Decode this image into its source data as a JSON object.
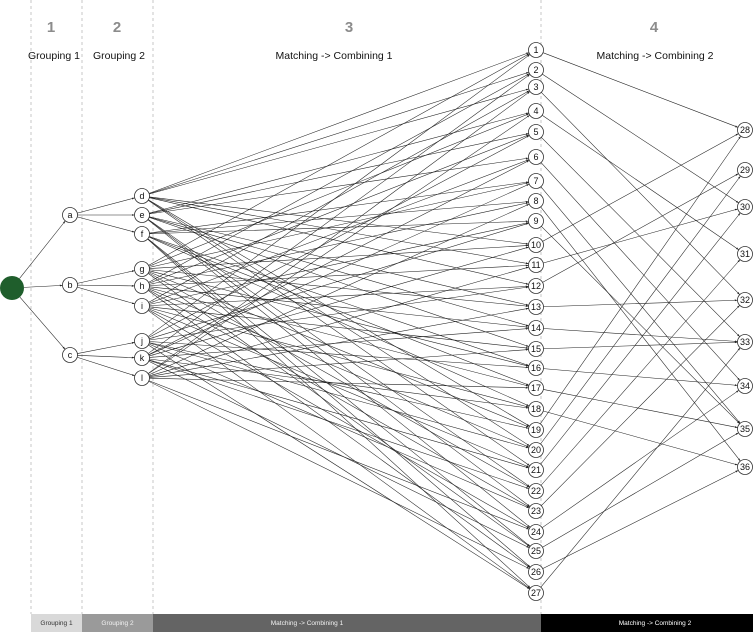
{
  "stages": [
    {
      "number": "1",
      "title": "Grouping 1"
    },
    {
      "number": "2",
      "title": "Grouping 2"
    },
    {
      "number": "3",
      "title": "Matching -> Combining 1"
    },
    {
      "number": "4",
      "title": "Matching -> Combining 2"
    }
  ],
  "footer": [
    {
      "label": "Grouping 1",
      "color": "#d9d9d9",
      "text_color": "#333333"
    },
    {
      "label": "Grouping 2",
      "color": "#9a9a9a",
      "text_color": "#f2f2f2"
    },
    {
      "label": "Matching -> Combining 1",
      "color": "#646464",
      "text_color": "#f2f2f2"
    },
    {
      "label": "Matching -> Combining 2",
      "color": "#000000",
      "text_color": "#ffffff"
    }
  ],
  "colors": {
    "root_node": "#1f5e2c",
    "stage_number": "#8c8c8c",
    "edge": "#222222",
    "divider": "#b0b0b0"
  },
  "nodes": {
    "root": "",
    "group1": [
      "a",
      "b",
      "c"
    ],
    "group2": [
      "d",
      "e",
      "f",
      "g",
      "h",
      "i",
      "j",
      "k",
      "l"
    ],
    "combo1": [
      "1",
      "2",
      "3",
      "4",
      "5",
      "6",
      "7",
      "8",
      "9",
      "10",
      "11",
      "12",
      "13",
      "14",
      "15",
      "16",
      "17",
      "18",
      "19",
      "20",
      "21",
      "22",
      "23",
      "24",
      "25",
      "26",
      "27"
    ],
    "combo2": [
      "28",
      "29",
      "30",
      "31",
      "32",
      "33",
      "34",
      "35",
      "36"
    ]
  },
  "edges": {
    "root_to_group1": [
      [
        "root",
        "a"
      ],
      [
        "root",
        "b"
      ],
      [
        "root",
        "c"
      ]
    ],
    "group1_to_group2": [
      [
        "a",
        "d"
      ],
      [
        "a",
        "e"
      ],
      [
        "a",
        "f"
      ],
      [
        "b",
        "g"
      ],
      [
        "b",
        "h"
      ],
      [
        "b",
        "i"
      ],
      [
        "c",
        "j"
      ],
      [
        "c",
        "k"
      ],
      [
        "c",
        "l"
      ]
    ],
    "group2_to_combo1": [
      [
        "d",
        "1"
      ],
      [
        "d",
        "2"
      ],
      [
        "d",
        "3"
      ],
      [
        "d",
        "10"
      ],
      [
        "d",
        "11"
      ],
      [
        "d",
        "12"
      ],
      [
        "d",
        "19"
      ],
      [
        "d",
        "20"
      ],
      [
        "d",
        "21"
      ],
      [
        "e",
        "4"
      ],
      [
        "e",
        "5"
      ],
      [
        "e",
        "6"
      ],
      [
        "e",
        "13"
      ],
      [
        "e",
        "14"
      ],
      [
        "e",
        "15"
      ],
      [
        "e",
        "22"
      ],
      [
        "e",
        "23"
      ],
      [
        "e",
        "24"
      ],
      [
        "f",
        "7"
      ],
      [
        "f",
        "8"
      ],
      [
        "f",
        "9"
      ],
      [
        "f",
        "16"
      ],
      [
        "f",
        "17"
      ],
      [
        "f",
        "18"
      ],
      [
        "f",
        "25"
      ],
      [
        "f",
        "26"
      ],
      [
        "f",
        "27"
      ],
      [
        "g",
        "1"
      ],
      [
        "g",
        "4"
      ],
      [
        "g",
        "7"
      ],
      [
        "g",
        "10"
      ],
      [
        "g",
        "13"
      ],
      [
        "g",
        "16"
      ],
      [
        "g",
        "19"
      ],
      [
        "g",
        "22"
      ],
      [
        "g",
        "25"
      ],
      [
        "h",
        "2"
      ],
      [
        "h",
        "5"
      ],
      [
        "h",
        "8"
      ],
      [
        "h",
        "11"
      ],
      [
        "h",
        "14"
      ],
      [
        "h",
        "17"
      ],
      [
        "h",
        "20"
      ],
      [
        "h",
        "23"
      ],
      [
        "h",
        "26"
      ],
      [
        "i",
        "3"
      ],
      [
        "i",
        "6"
      ],
      [
        "i",
        "9"
      ],
      [
        "i",
        "12"
      ],
      [
        "i",
        "15"
      ],
      [
        "i",
        "18"
      ],
      [
        "i",
        "21"
      ],
      [
        "i",
        "24"
      ],
      [
        "i",
        "27"
      ],
      [
        "j",
        "1"
      ],
      [
        "j",
        "5"
      ],
      [
        "j",
        "9"
      ],
      [
        "j",
        "12"
      ],
      [
        "j",
        "16"
      ],
      [
        "j",
        "20"
      ],
      [
        "j",
        "23"
      ],
      [
        "j",
        "27"
      ],
      [
        "j",
        "19"
      ],
      [
        "k",
        "2"
      ],
      [
        "k",
        "6"
      ],
      [
        "k",
        "7"
      ],
      [
        "k",
        "10"
      ],
      [
        "k",
        "14"
      ],
      [
        "k",
        "18"
      ],
      [
        "k",
        "21"
      ],
      [
        "k",
        "25"
      ],
      [
        "k",
        "22"
      ],
      [
        "l",
        "3"
      ],
      [
        "l",
        "4"
      ],
      [
        "l",
        "8"
      ],
      [
        "l",
        "11"
      ],
      [
        "l",
        "13"
      ],
      [
        "l",
        "15"
      ],
      [
        "l",
        "17"
      ],
      [
        "l",
        "24"
      ],
      [
        "l",
        "26"
      ]
    ],
    "combo1_to_combo2": [
      [
        "1",
        "28"
      ],
      [
        "2",
        "30"
      ],
      [
        "3",
        "32"
      ],
      [
        "4",
        "31"
      ],
      [
        "5",
        "33"
      ],
      [
        "6",
        "34"
      ],
      [
        "7",
        "35"
      ],
      [
        "8",
        "36"
      ],
      [
        "9",
        "35"
      ],
      [
        "10",
        "28"
      ],
      [
        "11",
        "30"
      ],
      [
        "12",
        "29"
      ],
      [
        "13",
        "32"
      ],
      [
        "14",
        "33"
      ],
      [
        "15",
        "33"
      ],
      [
        "16",
        "34"
      ],
      [
        "17",
        "35"
      ],
      [
        "18",
        "36"
      ],
      [
        "19",
        "28"
      ],
      [
        "20",
        "29"
      ],
      [
        "21",
        "30"
      ],
      [
        "22",
        "31"
      ],
      [
        "23",
        "32"
      ],
      [
        "24",
        "34"
      ],
      [
        "25",
        "35"
      ],
      [
        "26",
        "36"
      ],
      [
        "27",
        "33"
      ]
    ]
  }
}
